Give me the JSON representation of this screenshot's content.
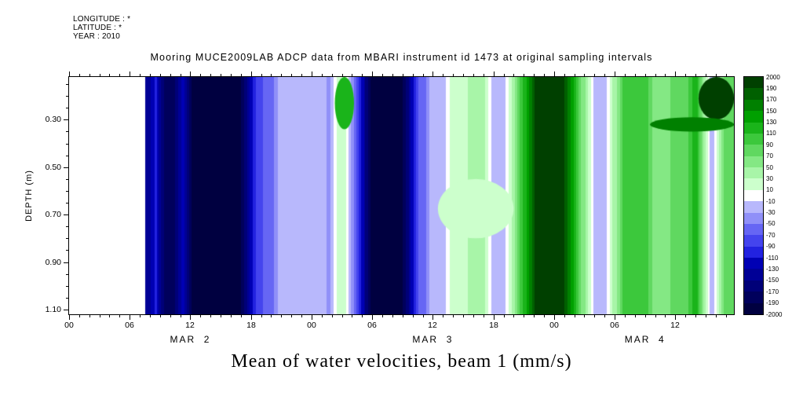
{
  "header": {
    "longitude": "LONGITUDE : *",
    "latitude": "LATITUDE : *",
    "year": "YEAR : 2010"
  },
  "title": "Mooring MUCE2009LAB ADCP data from MBARI instrument id 1473 at original sampling intervals",
  "caption": "Mean of water velocities, beam 1 (mm/s)",
  "colorbar": {
    "labels_top_to_bottom": [
      "2000",
      "190",
      "170",
      "150",
      "130",
      "110",
      "90",
      "70",
      "50",
      "30",
      "10",
      "-10",
      "-30",
      "-50",
      "-70",
      "-90",
      "-110",
      "-130",
      "-150",
      "-170",
      "-190",
      "-2000"
    ]
  },
  "chart_data": {
    "type": "heatmap",
    "title": "Mooring MUCE2009LAB ADCP data from MBARI instrument id 1473 at original sampling intervals",
    "ylabel": "DEPTH (m)",
    "value_label": "Mean of water velocities, beam 1 (mm/s)",
    "units": "mm/s",
    "x_range_hours": [
      0,
      65.8
    ],
    "x_ticks": [
      {
        "hour": 0,
        "label": "00"
      },
      {
        "hour": 6,
        "label": "06"
      },
      {
        "hour": 12,
        "label": "12"
      },
      {
        "hour": 18,
        "label": "18"
      },
      {
        "hour": 24,
        "label": "00"
      },
      {
        "hour": 30,
        "label": "06"
      },
      {
        "hour": 36,
        "label": "12"
      },
      {
        "hour": 42,
        "label": "18"
      },
      {
        "hour": 48,
        "label": "00"
      },
      {
        "hour": 54,
        "label": "06"
      },
      {
        "hour": 60,
        "label": "12"
      }
    ],
    "x_minor_tick_hours": 1,
    "date_labels": [
      {
        "label": "MAR  2",
        "center_hour": 12
      },
      {
        "label": "MAR  3",
        "center_hour": 36
      },
      {
        "label": "MAR  4",
        "center_hour": 57
      }
    ],
    "depth_range_m": [
      0.12,
      1.12
    ],
    "y_ticks": [
      {
        "depth": 0.3,
        "label": "0.30"
      },
      {
        "depth": 0.5,
        "label": "0.50"
      },
      {
        "depth": 0.7,
        "label": "0.70"
      },
      {
        "depth": 0.9,
        "label": "0.90"
      },
      {
        "depth": 1.1,
        "label": "1.10"
      }
    ],
    "y_minor_tick_m": 0.05,
    "levels": [
      -2000,
      -190,
      -170,
      -150,
      -130,
      -110,
      -90,
      -70,
      -50,
      -30,
      -10,
      10,
      30,
      50,
      70,
      90,
      110,
      130,
      150,
      170,
      190,
      2000
    ],
    "palette": [
      "#000040",
      "#00005c",
      "#000078",
      "#000096",
      "#0000b4",
      "#2222e0",
      "#4444ee",
      "#6666f4",
      "#9090f8",
      "#b8b8fc",
      "#ffffff",
      "#ccffcc",
      "#a8f5a8",
      "#84e884",
      "#60d860",
      "#3cc83c",
      "#1ab41a",
      "#00a000",
      "#008000",
      "#006000",
      "#004000"
    ],
    "no_data_before_hour": 7.5,
    "bands_hour_start_end_value": [
      [
        7.5,
        8.3,
        -140
      ],
      [
        8.3,
        9.0,
        -100
      ],
      [
        9.0,
        10.8,
        -180
      ],
      [
        10.8,
        11.8,
        -120
      ],
      [
        11.8,
        17.3,
        -1500
      ],
      [
        17.3,
        18.2,
        -140
      ],
      [
        18.2,
        19.2,
        -80
      ],
      [
        19.2,
        20.5,
        -60
      ],
      [
        20.5,
        25.5,
        -20
      ],
      [
        25.5,
        26.2,
        -40
      ],
      [
        26.2,
        27.8,
        20
      ],
      [
        27.8,
        28.8,
        -60
      ],
      [
        28.8,
        29.6,
        -140
      ],
      [
        29.6,
        33.3,
        -1500
      ],
      [
        33.3,
        34.2,
        -140
      ],
      [
        34.2,
        35.5,
        -60
      ],
      [
        35.5,
        37.5,
        -20
      ],
      [
        37.5,
        39.5,
        20
      ],
      [
        39.5,
        41.5,
        40
      ],
      [
        41.5,
        43.5,
        -20
      ],
      [
        43.5,
        44.5,
        40
      ],
      [
        44.5,
        45.7,
        120
      ],
      [
        45.7,
        49.3,
        1500
      ],
      [
        49.3,
        50.3,
        140
      ],
      [
        50.3,
        51.5,
        60
      ],
      [
        51.5,
        53.5,
        -20
      ],
      [
        53.5,
        54.5,
        40
      ],
      [
        54.5,
        57.5,
        100
      ],
      [
        57.5,
        59.5,
        60
      ],
      [
        59.5,
        61.5,
        80
      ],
      [
        61.5,
        62.8,
        120
      ],
      [
        62.8,
        64.3,
        -20
      ],
      [
        64.3,
        65.8,
        80
      ]
    ],
    "patches": [
      {
        "hours": [
          26.3,
          28.2
        ],
        "depth": [
          0.12,
          0.34
        ],
        "value": 120
      },
      {
        "hours": [
          62.3,
          65.8
        ],
        "depth": [
          0.12,
          0.3
        ],
        "value": 1500
      },
      {
        "hours": [
          57.5,
          65.8
        ],
        "depth": [
          0.29,
          0.35
        ],
        "value": 160
      },
      {
        "hours": [
          36.5,
          44.0
        ],
        "depth": [
          0.55,
          0.8
        ],
        "value": 20
      }
    ]
  }
}
